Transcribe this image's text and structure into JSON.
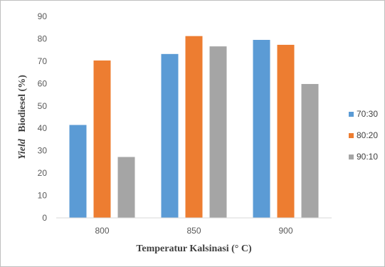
{
  "chart_data": {
    "type": "bar",
    "xlabel": "Temperatur Kalsinasi (° C)",
    "ylabel_italic": "Yield",
    "ylabel_rest": "Biodiesel (%)",
    "categories": [
      "800",
      "850",
      "900"
    ],
    "ylim": [
      0,
      90
    ],
    "yticks": [
      "0",
      "10",
      "20",
      "30",
      "40",
      "50",
      "60",
      "70",
      "80",
      "90"
    ],
    "grid": false,
    "legend_position": "right",
    "series": [
      {
        "name": "70:30",
        "color": "#5b9bd5",
        "values": [
          41.5,
          73.2,
          79.5
        ]
      },
      {
        "name": "80:20",
        "color": "#ed7d31",
        "values": [
          70.3,
          81.2,
          77.3
        ]
      },
      {
        "name": "90:10",
        "color": "#a5a5a5",
        "values": [
          27.2,
          76.6,
          59.8
        ]
      }
    ]
  }
}
